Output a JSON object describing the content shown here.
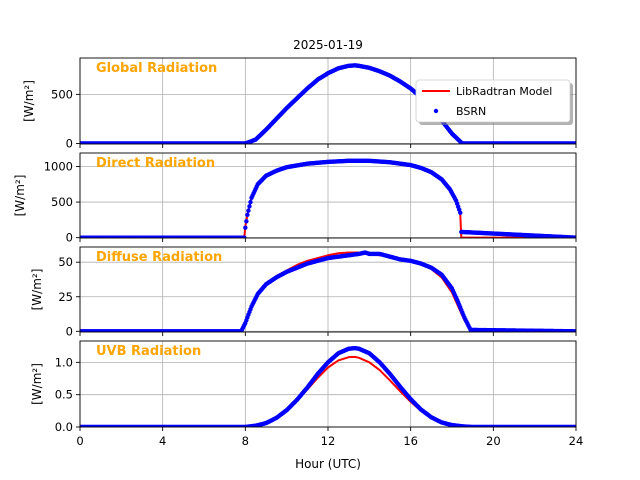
{
  "figure": {
    "title": "2025-01-19",
    "xlabel": "Hour (UTC)",
    "colors": {
      "model": "#ff0000",
      "bsrn": "#0000ff",
      "panel_title": "#ffa500",
      "grid": "#b0b0b0"
    }
  },
  "legend": {
    "placement": "upper-right of first panel",
    "entries": [
      {
        "label": "LibRadtran Model",
        "marker": "line",
        "color": "#ff0000"
      },
      {
        "label": "BSRN",
        "marker": "dot",
        "color": "#0000ff"
      }
    ]
  },
  "chart_data": [
    {
      "type": "line",
      "panel_title": "Global Radiation",
      "ylabel": "[W/m²]",
      "xlim": [
        0,
        24
      ],
      "ylim": [
        -5,
        870
      ],
      "xticks": [
        0,
        4,
        8,
        12,
        16,
        20,
        24
      ],
      "yticks": [
        0,
        500
      ],
      "ytick_labels": [
        "0",
        "500"
      ],
      "grid": true,
      "series": [
        {
          "name": "LibRadtran Model",
          "style": "line",
          "x": [
            0,
            8.0,
            8.5,
            9.0,
            9.5,
            10.0,
            10.5,
            11.0,
            11.5,
            12.0,
            12.5,
            13.0,
            13.3,
            13.5,
            14.0,
            14.5,
            15.0,
            15.5,
            16.0,
            16.5,
            17.0,
            17.5,
            18.0,
            18.5,
            24
          ],
          "y": [
            0,
            0,
            40,
            140,
            250,
            360,
            460,
            560,
            650,
            715,
            765,
            790,
            795,
            790,
            770,
            735,
            690,
            630,
            560,
            470,
            360,
            235,
            100,
            0,
            0
          ]
        },
        {
          "name": "BSRN",
          "style": "dots",
          "x": [
            0,
            8.0,
            8.5,
            9.0,
            9.5,
            10.0,
            10.5,
            11.0,
            11.5,
            12.0,
            12.5,
            13.0,
            13.3,
            13.5,
            14.0,
            14.5,
            15.0,
            15.5,
            16.0,
            16.5,
            17.0,
            17.5,
            18.0,
            18.5,
            24
          ],
          "y": [
            0,
            0,
            40,
            140,
            250,
            360,
            460,
            560,
            650,
            715,
            765,
            790,
            795,
            790,
            770,
            735,
            690,
            630,
            560,
            470,
            360,
            235,
            100,
            0,
            0
          ]
        }
      ]
    },
    {
      "type": "line",
      "panel_title": "Direct Radiation",
      "ylabel": "[W/m²]",
      "xlim": [
        0,
        24
      ],
      "ylim": [
        -5,
        1190
      ],
      "xticks": [
        0,
        4,
        8,
        12,
        16,
        20,
        24
      ],
      "yticks": [
        0,
        500,
        1000
      ],
      "ytick_labels": [
        "0",
        "500",
        "1000"
      ],
      "grid": true,
      "series": [
        {
          "name": "LibRadtran Model",
          "style": "line",
          "x": [
            0,
            7.95,
            8.0,
            8.1,
            8.3,
            8.6,
            9.0,
            9.5,
            10.0,
            11.0,
            12.0,
            13.0,
            14.0,
            15.0,
            16.0,
            16.5,
            17.0,
            17.5,
            17.9,
            18.2,
            18.4,
            18.45,
            24
          ],
          "y": [
            0,
            0,
            160,
            320,
            560,
            750,
            870,
            940,
            990,
            1040,
            1065,
            1075,
            1075,
            1060,
            1020,
            980,
            920,
            820,
            680,
            520,
            330,
            0,
            0
          ]
        },
        {
          "name": "BSRN",
          "style": "dots",
          "x": [
            0,
            7.95,
            8.0,
            8.1,
            8.3,
            8.6,
            9.0,
            9.5,
            10.0,
            11.0,
            12.0,
            13.0,
            14.0,
            15.0,
            16.0,
            16.5,
            17.0,
            17.5,
            17.9,
            18.2,
            18.4,
            18.45,
            24
          ],
          "y": [
            0,
            0,
            140,
            320,
            560,
            750,
            870,
            940,
            990,
            1040,
            1065,
            1080,
            1080,
            1060,
            1020,
            980,
            920,
            820,
            680,
            520,
            350,
            80,
            0
          ]
        }
      ]
    },
    {
      "type": "line",
      "panel_title": "Diffuse Radiation",
      "ylabel": "[W/m²]",
      "xlim": [
        0,
        24
      ],
      "ylim": [
        -0.5,
        61
      ],
      "xticks": [
        0,
        4,
        8,
        12,
        16,
        20,
        24
      ],
      "yticks": [
        0,
        25,
        50
      ],
      "ytick_labels": [
        "0",
        "25",
        "50"
      ],
      "grid": true,
      "series": [
        {
          "name": "LibRadtran Model",
          "style": "line",
          "x": [
            0,
            7.8,
            8.0,
            8.3,
            8.6,
            9.0,
            9.5,
            10.0,
            10.5,
            11.0,
            11.5,
            12.0,
            12.5,
            13.0,
            13.5,
            14.0,
            15.0,
            16.0,
            16.5,
            17.0,
            17.5,
            18.0,
            18.3,
            18.6,
            18.9,
            24
          ],
          "y": [
            0,
            0,
            6,
            18,
            27,
            34,
            40,
            44,
            48,
            51,
            53,
            55,
            56.5,
            57,
            57,
            56,
            54,
            51,
            49,
            45,
            39,
            28,
            18,
            8,
            1,
            0
          ]
        },
        {
          "name": "BSRN",
          "style": "dots",
          "x": [
            0,
            7.8,
            8.0,
            8.3,
            8.6,
            9.0,
            9.5,
            10.0,
            10.5,
            11.0,
            11.5,
            12.0,
            12.5,
            13.0,
            13.5,
            13.8,
            14.0,
            14.5,
            15.0,
            15.5,
            16.0,
            16.5,
            17.0,
            17.5,
            18.0,
            18.3,
            18.6,
            18.9,
            24
          ],
          "y": [
            0,
            0,
            6,
            18,
            27,
            34,
            39,
            43,
            46,
            49,
            51,
            53,
            54,
            55,
            56,
            57,
            56,
            56,
            54,
            52,
            51,
            49,
            46,
            41,
            31,
            21,
            10,
            1,
            0
          ]
        }
      ]
    },
    {
      "type": "line",
      "panel_title": "UVB Radiation",
      "ylabel": "[W/m²]",
      "xlim": [
        0,
        24
      ],
      "ylim": [
        0,
        1.33
      ],
      "xticks": [
        0,
        4,
        8,
        12,
        16,
        20,
        24
      ],
      "xtick_labels": [
        "0",
        "4",
        "8",
        "12",
        "16",
        "20",
        "24"
      ],
      "yticks": [
        0,
        0.5,
        1.0
      ],
      "ytick_labels": [
        "0.0",
        "0.5",
        "1.0"
      ],
      "grid": true,
      "series": [
        {
          "name": "LibRadtran Model",
          "style": "line",
          "x": [
            0,
            8.0,
            8.5,
            9.0,
            9.5,
            10.0,
            10.5,
            11.0,
            11.5,
            12.0,
            12.5,
            13.0,
            13.3,
            13.5,
            14.0,
            14.5,
            15.0,
            15.5,
            16.0,
            16.5,
            17.0,
            17.5,
            18.0,
            18.5,
            19.0,
            24
          ],
          "y": [
            0,
            0,
            0.02,
            0.06,
            0.14,
            0.26,
            0.41,
            0.58,
            0.76,
            0.92,
            1.03,
            1.08,
            1.085,
            1.07,
            1.0,
            0.88,
            0.72,
            0.55,
            0.39,
            0.25,
            0.14,
            0.07,
            0.03,
            0.01,
            0,
            0
          ]
        },
        {
          "name": "BSRN",
          "style": "dots",
          "x": [
            0,
            8.0,
            8.5,
            9.0,
            9.5,
            10.0,
            10.5,
            11.0,
            11.5,
            12.0,
            12.5,
            13.0,
            13.3,
            13.5,
            14.0,
            14.5,
            15.0,
            15.5,
            16.0,
            16.5,
            17.0,
            17.5,
            18.0,
            18.5,
            19.0,
            24
          ],
          "y": [
            0,
            0,
            0.02,
            0.06,
            0.14,
            0.26,
            0.42,
            0.61,
            0.82,
            1.0,
            1.14,
            1.21,
            1.22,
            1.21,
            1.14,
            1.0,
            0.82,
            0.62,
            0.43,
            0.27,
            0.15,
            0.07,
            0.03,
            0.01,
            0,
            0
          ]
        }
      ]
    }
  ]
}
